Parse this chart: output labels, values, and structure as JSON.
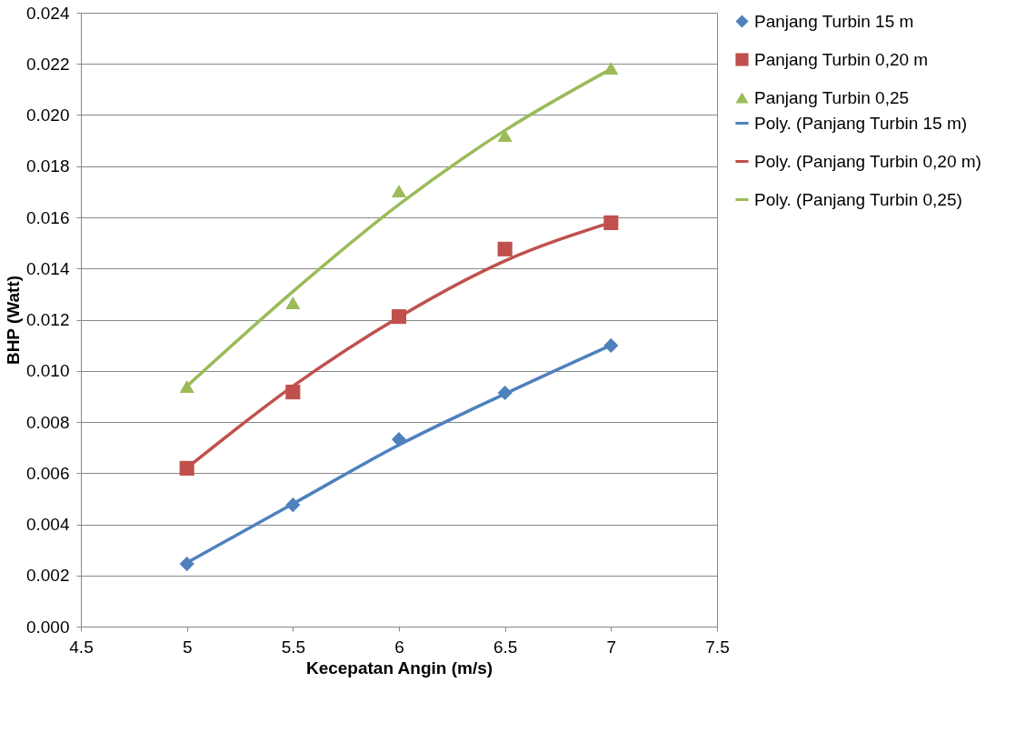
{
  "chart_data": {
    "type": "scatter",
    "xlabel": "Kecepatan Angin (m/s)",
    "ylabel": "BHP (Watt)",
    "xlim": [
      4.5,
      7.5
    ],
    "xticks": [
      4.5,
      {
        "value": 5,
        "label": "5"
      },
      5.5,
      {
        "value": 6,
        "label": "6"
      },
      6.5,
      {
        "value": 7,
        "label": "7"
      },
      7.5
    ],
    "ylim": [
      0,
      0.024
    ],
    "yticks": [
      {
        "value": 0,
        "label": "0.000"
      },
      {
        "value": 0.002,
        "label": "0.002"
      },
      {
        "value": 0.004,
        "label": "0.004"
      },
      {
        "value": 0.006,
        "label": "0.006"
      },
      {
        "value": 0.008,
        "label": "0.008"
      },
      {
        "value": 0.01,
        "label": "0.010"
      },
      {
        "value": 0.012,
        "label": "0.012"
      },
      {
        "value": 0.014,
        "label": "0.014"
      },
      {
        "value": 0.016,
        "label": "0.016"
      },
      {
        "value": 0.018,
        "label": "0.018"
      },
      {
        "value": 0.02,
        "label": "0.020"
      },
      {
        "value": 0.022,
        "label": "0.022"
      },
      {
        "value": 0.024,
        "label": "0.024"
      }
    ],
    "grid": "y",
    "legend": "right",
    "x": [
      5,
      5.5,
      6,
      6.5,
      7
    ],
    "series": [
      {
        "name": "Panjang Turbin 15 m",
        "marker": "diamond",
        "color": "#4f81bd",
        "values": [
          0.00245,
          0.00476,
          0.00732,
          0.00914,
          0.01099
        ]
      },
      {
        "name": "Panjang Turbin 0,20 m",
        "marker": "square",
        "color": "#c0504d",
        "values": [
          0.00619,
          0.00917,
          0.01212,
          0.01476,
          0.01579
        ]
      },
      {
        "name": "Panjang Turbin 0,25",
        "marker": "triangle",
        "color": "#9bbb59",
        "values": [
          0.00939,
          0.01266,
          0.01703,
          0.0192,
          0.02183
        ]
      },
      {
        "name": "Poly. (Panjang Turbin 15 m)",
        "type": "line",
        "line_style": "solid",
        "color": "#4f81bd",
        "values": [
          0.0025,
          0.0048,
          0.0071,
          0.0091,
          0.011
        ]
      },
      {
        "name": "Poly. (Panjang Turbin 0,20 m)",
        "type": "line",
        "line_style": "solid",
        "color": "#c0504d",
        "values": [
          0.0062,
          0.0094,
          0.0121,
          0.0143,
          0.0158
        ]
      },
      {
        "name": "Poly. (Panjang Turbin 0,25)",
        "type": "line",
        "line_style": "solid",
        "color": "#9bbb59",
        "values": [
          0.0094,
          0.0131,
          0.0165,
          0.0194,
          0.0218
        ]
      }
    ]
  }
}
